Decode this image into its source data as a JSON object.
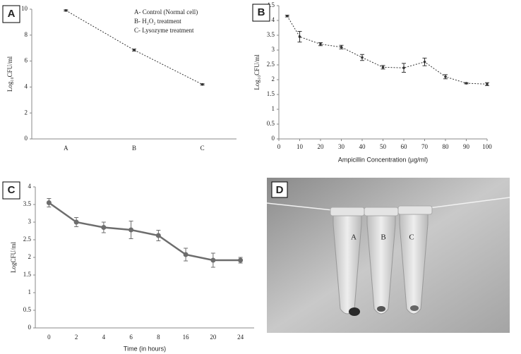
{
  "chart_data": [
    {
      "type": "line",
      "panel": "A",
      "ylabel": "Log₁₀CFU/ml",
      "categories": [
        "A",
        "B",
        "C"
      ],
      "values": [
        9.9,
        6.85,
        4.2
      ],
      "errors": [
        0.05,
        0.08,
        0.05
      ],
      "color": "#333333",
      "dashed": true,
      "ylim": [
        0,
        10
      ],
      "yticks": [
        0,
        2,
        4,
        6,
        8,
        10
      ],
      "annotations": [
        "A- Control (Normal cell)",
        "B- H₂O₂ treatment",
        "C- Lysozyme treatment"
      ]
    },
    {
      "type": "line",
      "panel": "B",
      "ylabel": "Log₁₀CFU/ml",
      "xlabel": "Ampicillin Concentration (µg/ml)",
      "x": [
        4,
        10,
        20,
        30,
        40,
        50,
        60,
        70,
        80,
        90,
        100
      ],
      "values": [
        4.15,
        3.45,
        3.2,
        3.1,
        2.75,
        2.42,
        2.4,
        2.6,
        2.1,
        1.88,
        1.85
      ],
      "errors": [
        0.03,
        0.18,
        0.05,
        0.06,
        0.1,
        0.06,
        0.15,
        0.13,
        0.07,
        0.02,
        0.05
      ],
      "color": "#333333",
      "dashed": true,
      "xlim": [
        0,
        100
      ],
      "xticks": [
        0,
        10,
        20,
        30,
        40,
        50,
        60,
        70,
        80,
        90,
        100
      ],
      "ylim": [
        0,
        4.5
      ],
      "yticks": [
        0,
        0.5,
        1,
        1.5,
        2,
        2.5,
        3,
        3.5,
        4,
        4.5
      ]
    },
    {
      "type": "line",
      "panel": "C",
      "ylabel": "LogCFU/ml",
      "xlabel": "Time (in hours)",
      "categories": [
        "0",
        "2",
        "4",
        "6",
        "8",
        "16",
        "20",
        "24"
      ],
      "values": [
        3.55,
        3.0,
        2.85,
        2.78,
        2.62,
        2.08,
        1.92,
        1.92
      ],
      "errors": [
        0.12,
        0.13,
        0.15,
        0.25,
        0.15,
        0.18,
        0.2,
        0.08
      ],
      "color": "#6d6d6d",
      "dashed": false,
      "ylim": [
        0,
        4
      ],
      "yticks": [
        0,
        0.5,
        1,
        1.5,
        2,
        2.5,
        3,
        3.5,
        4
      ]
    }
  ],
  "photo": {
    "panel": "D",
    "labels": [
      "A",
      "B",
      "C"
    ]
  }
}
